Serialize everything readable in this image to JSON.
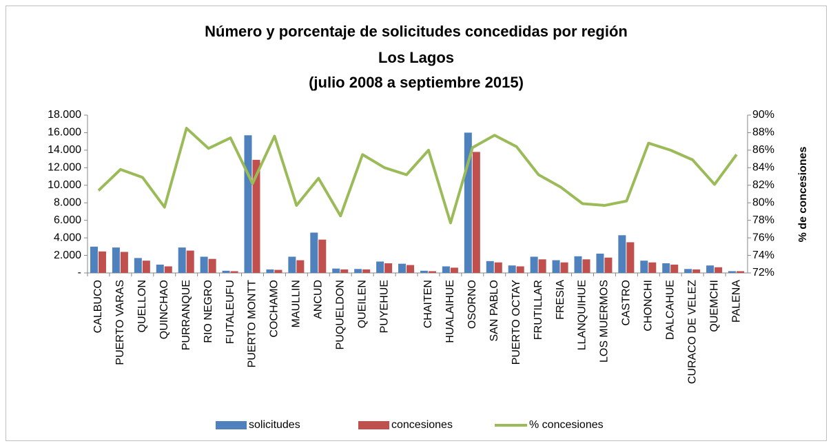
{
  "chart_data": {
    "type": "bar_line",
    "title": "Número y porcentaje de solicitudes concedidas por región",
    "subtitle": [
      "Los Lagos",
      "(julio 2008 a septiembre 2015)"
    ],
    "y2label": "% de concesiones",
    "categories": [
      "CALBUCO",
      "PUERTO VARAS",
      "QUELLON",
      "QUINCHAO",
      "PURRANQUE",
      "RIO NEGRO",
      "FUTALEUFU",
      "PUERTO MONTT",
      "COCHAMO",
      "MAULLIN",
      "ANCUD",
      "PUQUELDON",
      "QUEILEN",
      "PUYEHUE",
      null,
      "CHAITEN",
      "HUALAIHUE",
      "OSORNO",
      "SAN PABLO",
      "PUERTO OCTAY",
      "FRUTILLAR",
      "FRESIA",
      "LLANQUIHUE",
      "LOS MUERMOS",
      "CASTRO",
      "CHONCHI",
      "DALCAHUE",
      "CURACO DE VELEZ",
      "QUEMCHI",
      "PALENA"
    ],
    "series": [
      {
        "name": "solicitudes",
        "type": "bar",
        "color": "#4f81bd",
        "values": [
          3000,
          2900,
          1700,
          950,
          2900,
          1850,
          250,
          15700,
          400,
          1850,
          4600,
          500,
          450,
          1300,
          1050,
          250,
          750,
          16000,
          1350,
          850,
          1850,
          1450,
          1900,
          2200,
          4300,
          1400,
          1100,
          450,
          850,
          200
        ]
      },
      {
        "name": "concesiones",
        "type": "bar",
        "color": "#c0504d",
        "values": [
          2450,
          2400,
          1400,
          750,
          2550,
          1600,
          200,
          12900,
          350,
          1450,
          3800,
          400,
          400,
          1100,
          900,
          200,
          600,
          13800,
          1200,
          750,
          1550,
          1200,
          1550,
          1750,
          3500,
          1200,
          950,
          400,
          650,
          200
        ]
      },
      {
        "name": "% concesiones",
        "type": "line",
        "axis": "y2",
        "color": "#9bbb59",
        "values": [
          81.4,
          83.8,
          82.9,
          79.5,
          88.5,
          86.2,
          87.4,
          82.2,
          87.6,
          79.7,
          82.8,
          78.5,
          85.5,
          84.0,
          83.2,
          86.0,
          77.7,
          86.3,
          87.7,
          86.4,
          83.2,
          81.8,
          79.9,
          79.7,
          80.2,
          86.8,
          86.0,
          84.9,
          82.1,
          85.5
        ]
      }
    ],
    "ylim": [
      0,
      18000
    ],
    "yticks": [
      {
        "value": 0,
        "label": "-"
      },
      {
        "value": 2000,
        "label": "2.000"
      },
      {
        "value": 4000,
        "label": "4.000"
      },
      {
        "value": 6000,
        "label": "6.000"
      },
      {
        "value": 8000,
        "label": "8.000"
      },
      {
        "value": 10000,
        "label": "10.000"
      },
      {
        "value": 12000,
        "label": "12.000"
      },
      {
        "value": 14000,
        "label": "14.000"
      },
      {
        "value": 16000,
        "label": "16.000"
      },
      {
        "value": 18000,
        "label": "18.000"
      }
    ],
    "y2lim": [
      72,
      90
    ],
    "y2ticks": [
      {
        "value": 72,
        "label": "72%"
      },
      {
        "value": 74,
        "label": "74%"
      },
      {
        "value": 76,
        "label": "76%"
      },
      {
        "value": 78,
        "label": "78%"
      },
      {
        "value": 80,
        "label": "80%"
      },
      {
        "value": 82,
        "label": "82%"
      },
      {
        "value": 84,
        "label": "84%"
      },
      {
        "value": 86,
        "label": "86%"
      },
      {
        "value": 88,
        "label": "88%"
      },
      {
        "value": 90,
        "label": "90%"
      }
    ],
    "legend": "bottom"
  }
}
